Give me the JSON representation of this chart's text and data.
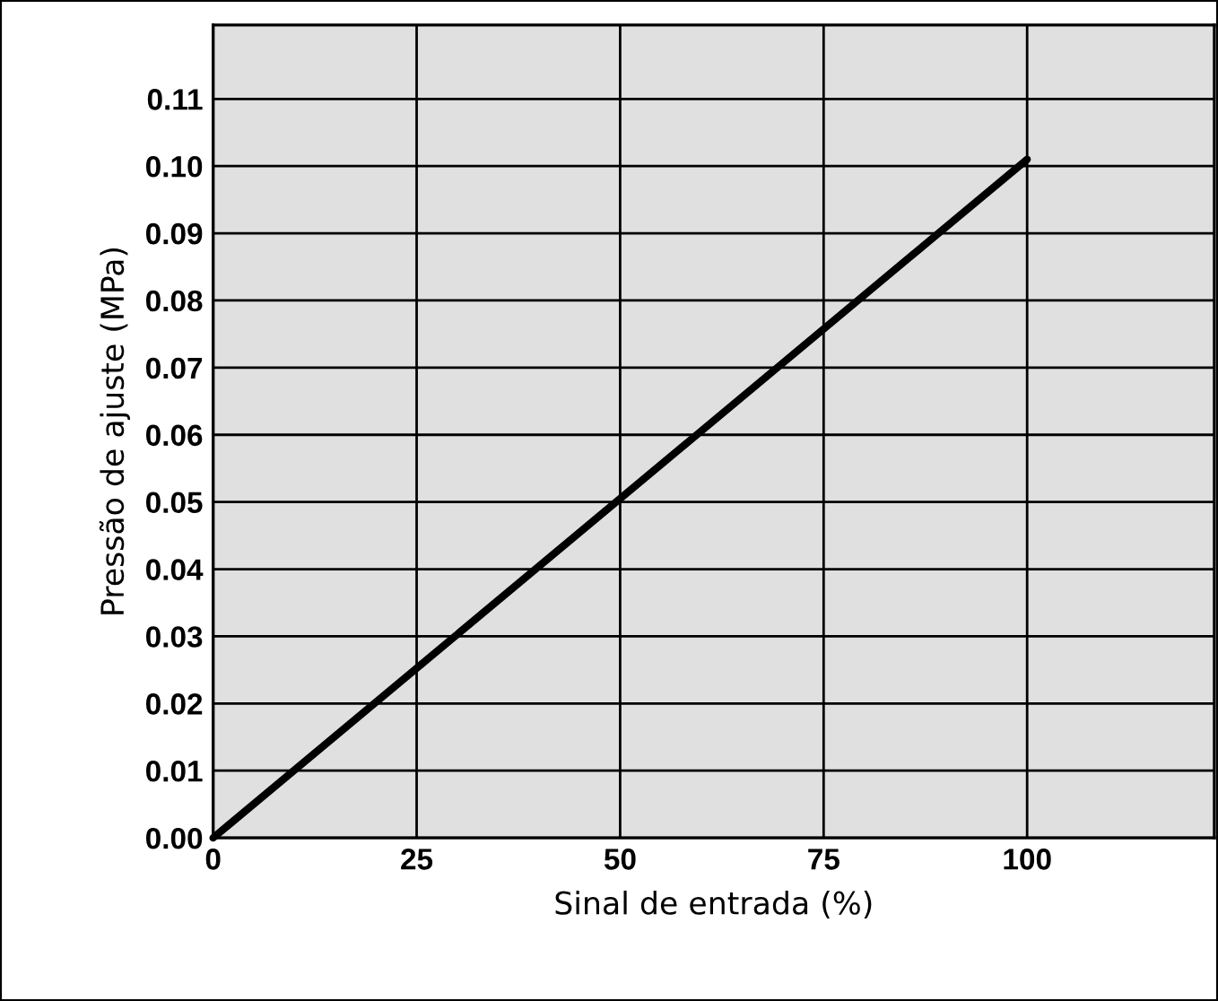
{
  "chart_data": {
    "type": "line",
    "xlabel": "Sinal de entrada (%)",
    "ylabel": "Pressão de ajuste (MPa)",
    "x": [
      0,
      100
    ],
    "series": [
      {
        "color": "#000000",
        "values": [
          0,
          0.101
        ]
      }
    ],
    "xlim": [
      0,
      123
    ],
    "xticks": [
      0,
      25,
      50,
      75,
      100
    ],
    "ylim": [
      0,
      0.121
    ],
    "yticks": [
      {
        "value": 0,
        "label": "0.00"
      },
      {
        "value": 0.01,
        "label": "0.01"
      },
      {
        "value": 0.02,
        "label": "0.02"
      },
      {
        "value": 0.03,
        "label": "0.03"
      },
      {
        "value": 0.04,
        "label": "0.04"
      },
      {
        "value": 0.05,
        "label": "0.05"
      },
      {
        "value": 0.06,
        "label": "0.06"
      },
      {
        "value": 0.07,
        "label": "0.07"
      },
      {
        "value": 0.08,
        "label": "0.08"
      },
      {
        "value": 0.09,
        "label": "0.09"
      },
      {
        "value": 0.1,
        "label": "0.10"
      },
      {
        "value": 0.11,
        "label": "0.11"
      }
    ],
    "grid": true,
    "marker": "none",
    "line_style": "solid",
    "legend": false
  }
}
